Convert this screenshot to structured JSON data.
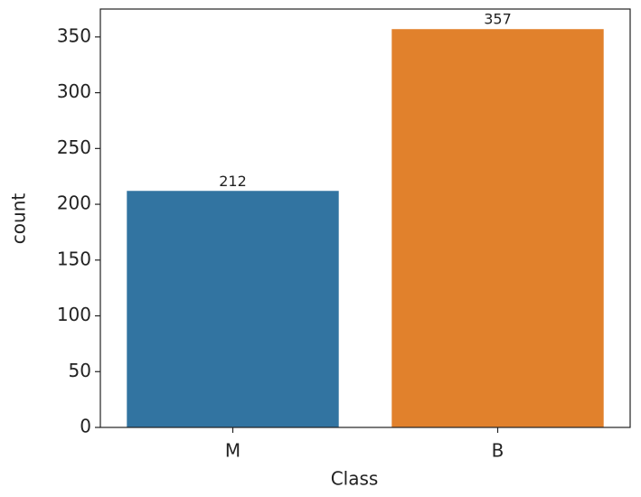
{
  "chart_data": {
    "type": "bar",
    "x_label": "Class",
    "y_label": "count",
    "categories": [
      "M",
      "B"
    ],
    "values": [
      212,
      357
    ],
    "colors": [
      "#3274a1",
      "#e1812c"
    ],
    "ylim": [
      0,
      375
    ],
    "yticks": [
      0,
      50,
      100,
      150,
      200,
      250,
      300,
      350
    ],
    "grid": false,
    "show_value_labels": true
  }
}
